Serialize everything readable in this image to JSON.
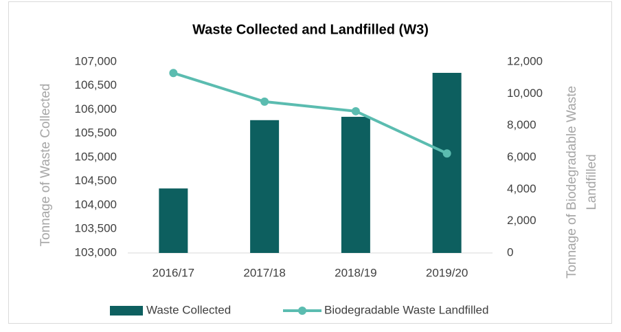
{
  "chart_data": {
    "type": "bar_line",
    "title": "Waste Collected and Landfilled (W3)",
    "ylabel": "Tonnage of Waste Collected",
    "y2label": [
      "Tonnage of Biodegradable Waste",
      "Landfilled"
    ],
    "categories": [
      "2016/17",
      "2017/18",
      "2018/19",
      "2019/20"
    ],
    "series": [
      {
        "name": "Waste Collected",
        "type": "bar",
        "color": "#0d5f5f",
        "values": [
          104350,
          105780,
          105850,
          106770
        ]
      },
      {
        "name": "Biodegradable Waste Landfilled",
        "type": "line",
        "axis": "y2",
        "color": "#5bbcb0",
        "values": [
          11300,
          9500,
          8900,
          6250
        ]
      }
    ],
    "ylim": [
      103000,
      107000
    ],
    "yticks": [
      {
        "value": 103000,
        "label": "103,000"
      },
      {
        "value": 103500,
        "label": "103,500"
      },
      {
        "value": 104000,
        "label": "104,000"
      },
      {
        "value": 104500,
        "label": "104,500"
      },
      {
        "value": 105000,
        "label": "105,000"
      },
      {
        "value": 105500,
        "label": "105,500"
      },
      {
        "value": 106000,
        "label": "106,000"
      },
      {
        "value": 106500,
        "label": "106,500"
      },
      {
        "value": 107000,
        "label": "107,000"
      }
    ],
    "y2lim": [
      0,
      12000
    ],
    "y2ticks": [
      0,
      {
        "value": 2000,
        "label": "2,000"
      },
      {
        "value": 4000,
        "label": "4,000"
      },
      {
        "value": 6000,
        "label": "6,000"
      },
      {
        "value": 8000,
        "label": "8,000"
      },
      {
        "value": 10000,
        "label": "10,000"
      },
      {
        "value": 12000,
        "label": "12,000"
      }
    ],
    "legend": "bottom",
    "grid": false
  }
}
